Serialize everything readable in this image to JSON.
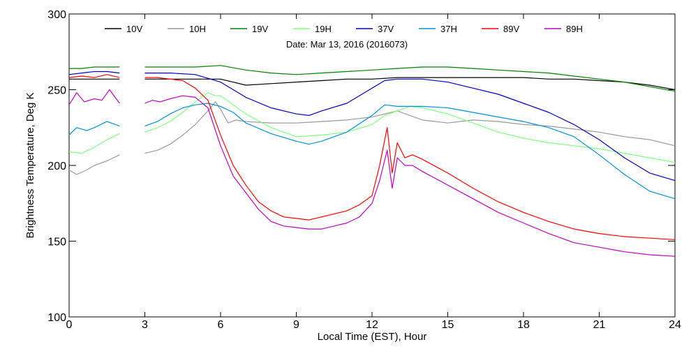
{
  "chart_data": {
    "type": "line",
    "subtitle": "Date: Mar 13, 2016 (2016073)",
    "xlabel": "Local Time (EST), Hour",
    "ylabel": "Brightness Temperature, Deg K",
    "xlim": [
      0,
      24
    ],
    "ylim": [
      100,
      300
    ],
    "xticks": [
      0,
      3,
      6,
      9,
      12,
      15,
      18,
      21,
      24
    ],
    "yticks": [
      100,
      150,
      200,
      250,
      300
    ],
    "grid": false,
    "legend_position": "top",
    "gap": [
      2.0,
      3.0
    ],
    "series": [
      {
        "name": "10V",
        "color": "#000000",
        "x": [
          0,
          0.5,
          1,
          1.5,
          2,
          3,
          4,
          5,
          6,
          7,
          8,
          9,
          10,
          11,
          12,
          13,
          14,
          15,
          16,
          17,
          18,
          19,
          20,
          21,
          22,
          23,
          24
        ],
        "y": [
          257,
          257,
          257,
          257,
          257,
          257,
          257,
          257,
          257,
          253,
          254,
          255,
          256,
          257,
          257,
          258,
          258,
          258,
          258,
          258,
          258,
          257,
          257,
          256,
          255,
          253,
          250
        ]
      },
      {
        "name": "10H",
        "color": "#999999",
        "x": [
          0,
          0.3,
          0.7,
          1,
          1.5,
          2,
          3,
          3.5,
          4,
          4.5,
          5,
          5.5,
          5.8,
          6,
          6.3,
          6.6,
          7,
          8,
          9,
          10,
          11,
          12,
          12.5,
          13,
          13.5,
          14,
          15,
          16,
          17,
          18,
          19,
          20,
          21,
          22,
          23,
          24
        ],
        "y": [
          197,
          194,
          197,
          200,
          203,
          207,
          208,
          210,
          214,
          220,
          227,
          236,
          242,
          237,
          228,
          230,
          229,
          228,
          228,
          229,
          230,
          232,
          234,
          236,
          233,
          230,
          228,
          230,
          229,
          227,
          226,
          224,
          222,
          219,
          217,
          213
        ]
      },
      {
        "name": "19V",
        "color": "#008000",
        "x": [
          0,
          0.5,
          1,
          1.5,
          2,
          3,
          4,
          5,
          6,
          7,
          8,
          9,
          10,
          11,
          12,
          13,
          14,
          15,
          16,
          17,
          18,
          19,
          20,
          21,
          22,
          23,
          24
        ],
        "y": [
          264,
          264,
          265,
          265,
          265,
          265,
          265,
          265,
          266,
          263,
          261,
          260,
          261,
          262,
          263,
          264,
          265,
          265,
          264,
          263,
          262,
          261,
          259,
          257,
          255,
          252,
          249
        ]
      },
      {
        "name": "19H",
        "color": "#80ff80",
        "x": [
          0,
          0.5,
          1,
          1.5,
          2,
          3,
          3.5,
          4,
          4.5,
          5,
          5.5,
          5.8,
          6,
          6.5,
          7,
          8,
          9,
          10,
          11,
          12,
          12.5,
          13,
          13.5,
          14,
          15,
          16,
          17,
          18,
          19,
          20,
          21,
          22,
          23,
          24
        ],
        "y": [
          209,
          208,
          212,
          217,
          221,
          222,
          225,
          229,
          235,
          242,
          248,
          246,
          246,
          240,
          234,
          225,
          219,
          220,
          222,
          227,
          233,
          236,
          239,
          238,
          234,
          228,
          222,
          218,
          215,
          213,
          211,
          208,
          205,
          202
        ]
      },
      {
        "name": "37V",
        "color": "#0000c0",
        "x": [
          0,
          0.5,
          1,
          1.5,
          2,
          3,
          4,
          5,
          6,
          6.5,
          7,
          8,
          9,
          9.5,
          10,
          11,
          12,
          12.5,
          13,
          14,
          15,
          16,
          17,
          18,
          19,
          20,
          21,
          22,
          23,
          24
        ],
        "y": [
          260,
          261,
          262,
          262,
          261,
          261,
          261,
          260,
          255,
          250,
          245,
          238,
          234,
          233,
          236,
          241,
          251,
          256,
          257,
          257,
          255,
          251,
          247,
          241,
          235,
          227,
          217,
          205,
          195,
          190
        ]
      },
      {
        "name": "37H",
        "color": "#0090d8",
        "x": [
          0,
          0.3,
          0.7,
          1,
          1.5,
          2,
          3,
          3.5,
          4,
          4.5,
          5,
          5.5,
          6,
          6.5,
          7,
          8,
          9,
          9.5,
          10,
          11,
          12,
          12.5,
          13,
          14,
          15,
          16,
          17,
          18,
          19,
          20,
          21,
          22,
          23,
          24
        ],
        "y": [
          220,
          225,
          223,
          225,
          229,
          226,
          226,
          229,
          234,
          238,
          240,
          241,
          239,
          235,
          228,
          221,
          216,
          214,
          216,
          222,
          233,
          240,
          239,
          239,
          238,
          235,
          232,
          229,
          225,
          219,
          207,
          194,
          183,
          178
        ]
      },
      {
        "name": "89V",
        "color": "#ff0000",
        "x": [
          0,
          0.5,
          1,
          1.5,
          2,
          3,
          3.5,
          4,
          4.5,
          5,
          5.5,
          6,
          6.5,
          7,
          7.5,
          8,
          8.5,
          9,
          9.5,
          10,
          10.5,
          11,
          11.5,
          12,
          12.3,
          12.6,
          12.8,
          13,
          13.3,
          13.6,
          14,
          15,
          16,
          17,
          18,
          19,
          20,
          21,
          22,
          23,
          24
        ],
        "y": [
          258,
          259,
          258,
          260,
          258,
          258,
          258,
          257,
          256,
          251,
          243,
          220,
          200,
          187,
          176,
          170,
          166,
          165,
          164,
          166,
          168,
          170,
          174,
          180,
          200,
          225,
          195,
          215,
          205,
          207,
          204,
          195,
          185,
          176,
          169,
          163,
          158,
          155,
          153,
          152,
          151
        ]
      },
      {
        "name": "89H",
        "color": "#c000c0",
        "x": [
          0,
          0.3,
          0.6,
          1,
          1.3,
          1.6,
          2,
          3,
          3.3,
          3.6,
          4,
          4.5,
          5,
          5.5,
          6,
          6.5,
          7,
          7.5,
          8,
          8.5,
          9,
          9.5,
          10,
          10.5,
          11,
          11.5,
          12,
          12.3,
          12.6,
          12.8,
          13,
          13.3,
          13.6,
          14,
          15,
          16,
          17,
          18,
          19,
          20,
          21,
          22,
          23,
          24
        ],
        "y": [
          240,
          248,
          242,
          244,
          243,
          250,
          241,
          241,
          243,
          242,
          244,
          246,
          245,
          238,
          213,
          193,
          182,
          171,
          163,
          160,
          159,
          158,
          158,
          160,
          162,
          166,
          175,
          190,
          210,
          185,
          205,
          200,
          200,
          196,
          187,
          178,
          169,
          162,
          155,
          149,
          146,
          143,
          141,
          140
        ]
      }
    ]
  }
}
